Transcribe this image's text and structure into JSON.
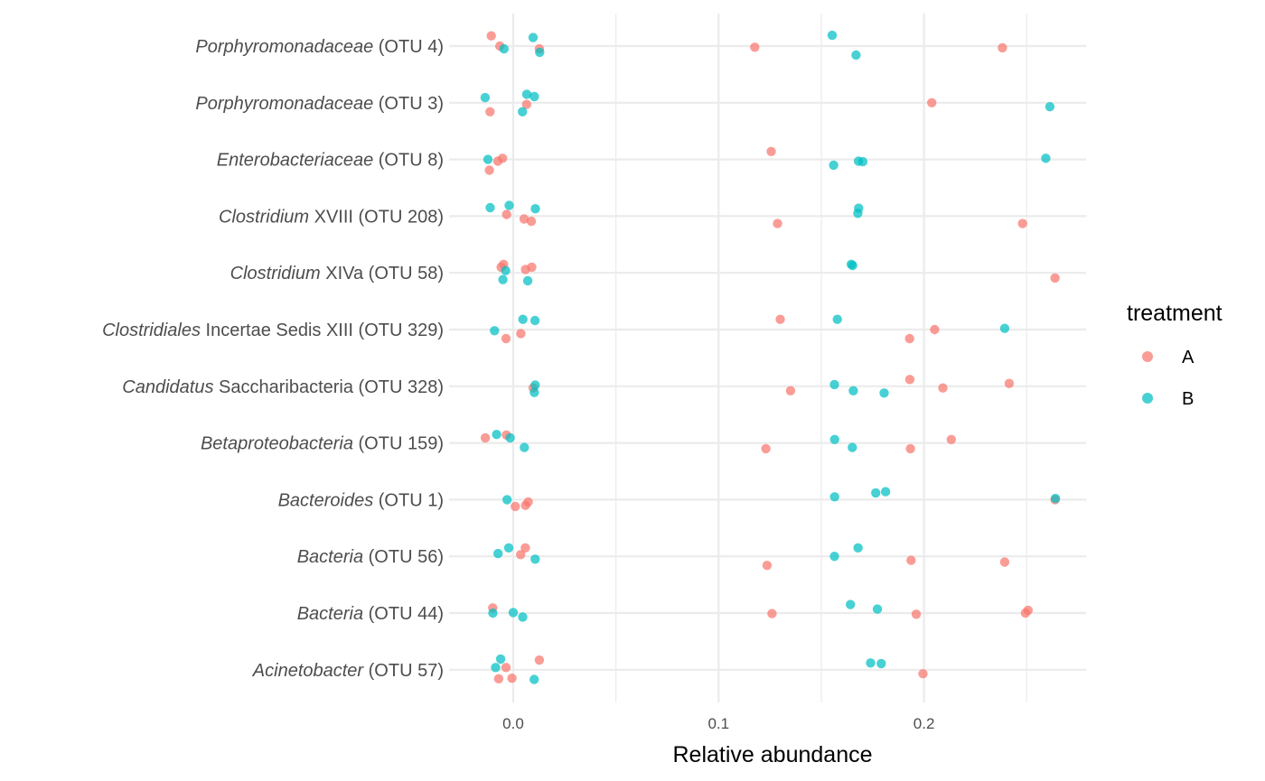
{
  "chart_data": {
    "type": "scatter",
    "title": "",
    "xlabel": "Relative abundance",
    "ylabel": "",
    "xlim": [
      -0.032,
      0.28
    ],
    "x_ticks": [
      {
        "value": 0.0,
        "label": "0.0"
      },
      {
        "value": 0.1,
        "label": "0.1"
      },
      {
        "value": 0.2,
        "label": "0.2"
      }
    ],
    "x_minor_ticks": [
      0.05,
      0.15,
      0.25
    ],
    "gridx_max": 0.279,
    "grid": true,
    "legend": {
      "title": "treatment",
      "placement": "right",
      "entries": [
        {
          "name": "A",
          "color": "#F8766D"
        },
        {
          "name": "B",
          "color": "#00BFC4"
        }
      ]
    },
    "categories": [
      {
        "italic": "Porphyromonadaceae",
        "rest": " (OTU 4)"
      },
      {
        "italic": "Porphyromonadaceae",
        "rest": " (OTU 3)"
      },
      {
        "italic": "Enterobacteriaceae",
        "rest": " (OTU 8)"
      },
      {
        "italic": "Clostridium",
        "rest": " XVIII (OTU 208)"
      },
      {
        "italic": "Clostridium",
        "rest": " XIVa (OTU 58)"
      },
      {
        "italic": "Clostridiales",
        "rest": " Incertae Sedis XIII (OTU 329)"
      },
      {
        "italic": "Candidatus",
        "rest": " Saccharibacteria (OTU 328)"
      },
      {
        "italic": "Betaproteobacteria",
        "rest": " (OTU 159)"
      },
      {
        "italic": "Bacteroides",
        "rest": " (OTU 1)"
      },
      {
        "italic": "Bacteria",
        "rest": " (OTU 56)"
      },
      {
        "italic": "Bacteria",
        "rest": " (OTU 44)"
      },
      {
        "italic": "Acinetobacter",
        "rest": " (OTU 57)"
      }
    ],
    "points": [
      {
        "c": 0,
        "t": "A",
        "x": -0.0107,
        "j": 0.18
      },
      {
        "c": 0,
        "t": "A",
        "x": 0.0127,
        "j": -0.05
      },
      {
        "c": 0,
        "t": "A",
        "x": -0.0065,
        "j": 0.0
      },
      {
        "c": 0,
        "t": "A",
        "x": 0.1176,
        "j": -0.02
      },
      {
        "c": 0,
        "t": "A",
        "x": 0.2382,
        "j": -0.03
      },
      {
        "c": 0,
        "t": "B",
        "x": 0.0097,
        "j": 0.15
      },
      {
        "c": 0,
        "t": "B",
        "x": -0.0045,
        "j": -0.05
      },
      {
        "c": 0,
        "t": "B",
        "x": 0.0129,
        "j": -0.11
      },
      {
        "c": 0,
        "t": "B",
        "x": 0.1553,
        "j": 0.19
      },
      {
        "c": 0,
        "t": "B",
        "x": 0.1669,
        "j": -0.16
      },
      {
        "c": 1,
        "t": "A",
        "x": 0.0065,
        "j": -0.03
      },
      {
        "c": 1,
        "t": "A",
        "x": -0.0113,
        "j": -0.16
      },
      {
        "c": 1,
        "t": "A",
        "x": 0.2038,
        "j": 0.0
      },
      {
        "c": 1,
        "t": "B",
        "x": -0.0137,
        "j": 0.09
      },
      {
        "c": 1,
        "t": "B",
        "x": 0.0066,
        "j": 0.15
      },
      {
        "c": 1,
        "t": "B",
        "x": 0.0103,
        "j": 0.11
      },
      {
        "c": 1,
        "t": "B",
        "x": 0.0045,
        "j": -0.16
      },
      {
        "c": 1,
        "t": "B",
        "x": 0.2613,
        "j": -0.07
      },
      {
        "c": 2,
        "t": "A",
        "x": 0.1256,
        "j": 0.14
      },
      {
        "c": 2,
        "t": "A",
        "x": -0.0052,
        "j": 0.02
      },
      {
        "c": 2,
        "t": "A",
        "x": -0.0075,
        "j": -0.03
      },
      {
        "c": 2,
        "t": "A",
        "x": -0.0116,
        "j": -0.19
      },
      {
        "c": 2,
        "t": "B",
        "x": -0.0123,
        "j": -0.0
      },
      {
        "c": 2,
        "t": "B",
        "x": 0.156,
        "j": -0.1
      },
      {
        "c": 2,
        "t": "B",
        "x": 0.1681,
        "j": -0.03
      },
      {
        "c": 2,
        "t": "B",
        "x": 0.1702,
        "j": -0.04
      },
      {
        "c": 2,
        "t": "B",
        "x": 0.2593,
        "j": 0.02
      },
      {
        "c": 3,
        "t": "A",
        "x": -0.0032,
        "j": 0.03
      },
      {
        "c": 3,
        "t": "A",
        "x": 0.0053,
        "j": -0.05
      },
      {
        "c": 3,
        "t": "A",
        "x": 0.0088,
        "j": -0.09
      },
      {
        "c": 3,
        "t": "A",
        "x": 0.1287,
        "j": -0.13
      },
      {
        "c": 3,
        "t": "A",
        "x": 0.248,
        "j": -0.13
      },
      {
        "c": 3,
        "t": "B",
        "x": -0.0112,
        "j": 0.15
      },
      {
        "c": 3,
        "t": "B",
        "x": -0.002,
        "j": 0.19
      },
      {
        "c": 3,
        "t": "B",
        "x": 0.0108,
        "j": 0.13
      },
      {
        "c": 3,
        "t": "B",
        "x": 0.1682,
        "j": 0.14
      },
      {
        "c": 3,
        "t": "B",
        "x": 0.1678,
        "j": 0.05
      },
      {
        "c": 4,
        "t": "A",
        "x": -0.0047,
        "j": 0.15
      },
      {
        "c": 4,
        "t": "A",
        "x": -0.0059,
        "j": 0.1
      },
      {
        "c": 4,
        "t": "A",
        "x": 0.006,
        "j": 0.06
      },
      {
        "c": 4,
        "t": "A",
        "x": 0.009,
        "j": 0.1
      },
      {
        "c": 4,
        "t": "A",
        "x": 0.2638,
        "j": -0.09
      },
      {
        "c": 4,
        "t": "B",
        "x": -0.0037,
        "j": 0.04
      },
      {
        "c": 4,
        "t": "B",
        "x": -0.005,
        "j": -0.12
      },
      {
        "c": 4,
        "t": "B",
        "x": 0.0071,
        "j": -0.14
      },
      {
        "c": 4,
        "t": "B",
        "x": 0.1646,
        "j": 0.15
      },
      {
        "c": 4,
        "t": "B",
        "x": 0.1653,
        "j": 0.13
      },
      {
        "c": 5,
        "t": "A",
        "x": 0.0037,
        "j": -0.07
      },
      {
        "c": 5,
        "t": "A",
        "x": -0.0035,
        "j": -0.16
      },
      {
        "c": 5,
        "t": "A",
        "x": 0.13,
        "j": 0.18
      },
      {
        "c": 5,
        "t": "A",
        "x": 0.193,
        "j": -0.16
      },
      {
        "c": 5,
        "t": "A",
        "x": 0.2052,
        "j": -0.0
      },
      {
        "c": 5,
        "t": "B",
        "x": -0.0091,
        "j": -0.02
      },
      {
        "c": 5,
        "t": "B",
        "x": 0.0047,
        "j": 0.18
      },
      {
        "c": 5,
        "t": "B",
        "x": 0.0106,
        "j": 0.16
      },
      {
        "c": 5,
        "t": "B",
        "x": 0.1578,
        "j": 0.18
      },
      {
        "c": 5,
        "t": "B",
        "x": 0.2393,
        "j": 0.02
      },
      {
        "c": 6,
        "t": "A",
        "x": 0.0097,
        "j": -0.03
      },
      {
        "c": 6,
        "t": "A",
        "x": 0.135,
        "j": -0.08
      },
      {
        "c": 6,
        "t": "A",
        "x": 0.1931,
        "j": 0.12
      },
      {
        "c": 6,
        "t": "A",
        "x": 0.2092,
        "j": -0.03
      },
      {
        "c": 6,
        "t": "A",
        "x": 0.2415,
        "j": 0.05
      },
      {
        "c": 6,
        "t": "B",
        "x": 0.0107,
        "j": 0.02
      },
      {
        "c": 6,
        "t": "B",
        "x": 0.0103,
        "j": -0.11
      },
      {
        "c": 6,
        "t": "B",
        "x": 0.1564,
        "j": 0.03
      },
      {
        "c": 6,
        "t": "B",
        "x": 0.1656,
        "j": -0.08
      },
      {
        "c": 6,
        "t": "B",
        "x": 0.1806,
        "j": -0.12
      },
      {
        "c": 7,
        "t": "A",
        "x": -0.0136,
        "j": 0.09
      },
      {
        "c": 7,
        "t": "A",
        "x": -0.0033,
        "j": 0.14
      },
      {
        "c": 7,
        "t": "A",
        "x": 0.123,
        "j": -0.1
      },
      {
        "c": 7,
        "t": "A",
        "x": 0.1934,
        "j": -0.1
      },
      {
        "c": 7,
        "t": "A",
        "x": 0.2133,
        "j": 0.06
      },
      {
        "c": 7,
        "t": "B",
        "x": -0.0081,
        "j": 0.15
      },
      {
        "c": 7,
        "t": "B",
        "x": -0.0015,
        "j": 0.09
      },
      {
        "c": 7,
        "t": "B",
        "x": 0.0054,
        "j": -0.08
      },
      {
        "c": 7,
        "t": "B",
        "x": 0.1565,
        "j": 0.06
      },
      {
        "c": 7,
        "t": "B",
        "x": 0.1651,
        "j": -0.08
      },
      {
        "c": 8,
        "t": "A",
        "x": 0.001,
        "j": -0.12
      },
      {
        "c": 8,
        "t": "A",
        "x": 0.006,
        "j": -0.1
      },
      {
        "c": 8,
        "t": "A",
        "x": 0.0073,
        "j": -0.04
      },
      {
        "c": 8,
        "t": "A",
        "x": 0.2638,
        "j": 0.0
      },
      {
        "c": 8,
        "t": "B",
        "x": -0.003,
        "j": 0.0
      },
      {
        "c": 8,
        "t": "B",
        "x": 0.1565,
        "j": 0.05
      },
      {
        "c": 8,
        "t": "B",
        "x": 0.1765,
        "j": 0.12
      },
      {
        "c": 8,
        "t": "B",
        "x": 0.1813,
        "j": 0.14
      },
      {
        "c": 8,
        "t": "B",
        "x": 0.264,
        "j": 0.02
      },
      {
        "c": 9,
        "t": "A",
        "x": 0.0059,
        "j": 0.15
      },
      {
        "c": 9,
        "t": "A",
        "x": 0.0036,
        "j": 0.03
      },
      {
        "c": 9,
        "t": "A",
        "x": 0.1236,
        "j": -0.16
      },
      {
        "c": 9,
        "t": "A",
        "x": 0.1937,
        "j": -0.07
      },
      {
        "c": 9,
        "t": "A",
        "x": 0.2393,
        "j": -0.1
      },
      {
        "c": 9,
        "t": "B",
        "x": -0.0022,
        "j": 0.15
      },
      {
        "c": 9,
        "t": "B",
        "x": -0.0074,
        "j": 0.05
      },
      {
        "c": 9,
        "t": "B",
        "x": 0.0107,
        "j": -0.05
      },
      {
        "c": 9,
        "t": "B",
        "x": 0.1564,
        "j": 0.0
      },
      {
        "c": 9,
        "t": "B",
        "x": 0.1679,
        "j": 0.15
      },
      {
        "c": 10,
        "t": "A",
        "x": -0.01,
        "j": 0.09
      },
      {
        "c": 10,
        "t": "A",
        "x": 0.126,
        "j": -0.01
      },
      {
        "c": 10,
        "t": "A",
        "x": 0.1962,
        "j": -0.02
      },
      {
        "c": 10,
        "t": "A",
        "x": 0.2494,
        "j": -0.0
      },
      {
        "c": 10,
        "t": "A",
        "x": 0.2507,
        "j": 0.05
      },
      {
        "c": 10,
        "t": "B",
        "x": -0.0099,
        "j": 0.0
      },
      {
        "c": 10,
        "t": "B",
        "x": 0.0,
        "j": 0.01
      },
      {
        "c": 10,
        "t": "B",
        "x": 0.0046,
        "j": -0.07
      },
      {
        "c": 10,
        "t": "B",
        "x": 0.1642,
        "j": 0.15
      },
      {
        "c": 10,
        "t": "B",
        "x": 0.1773,
        "j": 0.07
      },
      {
        "c": 11,
        "t": "A",
        "x": 0.0127,
        "j": 0.17
      },
      {
        "c": 11,
        "t": "A",
        "x": -0.0035,
        "j": 0.04
      },
      {
        "c": 11,
        "t": "A",
        "x": -0.0071,
        "j": -0.16
      },
      {
        "c": 11,
        "t": "A",
        "x": -0.0006,
        "j": -0.15
      },
      {
        "c": 11,
        "t": "A",
        "x": 0.1995,
        "j": -0.07
      },
      {
        "c": 11,
        "t": "B",
        "x": -0.0061,
        "j": 0.19
      },
      {
        "c": 11,
        "t": "B",
        "x": -0.0086,
        "j": 0.04
      },
      {
        "c": 11,
        "t": "B",
        "x": 0.0102,
        "j": -0.17
      },
      {
        "c": 11,
        "t": "B",
        "x": 0.174,
        "j": 0.12
      },
      {
        "c": 11,
        "t": "B",
        "x": 0.1792,
        "j": 0.11
      }
    ]
  }
}
